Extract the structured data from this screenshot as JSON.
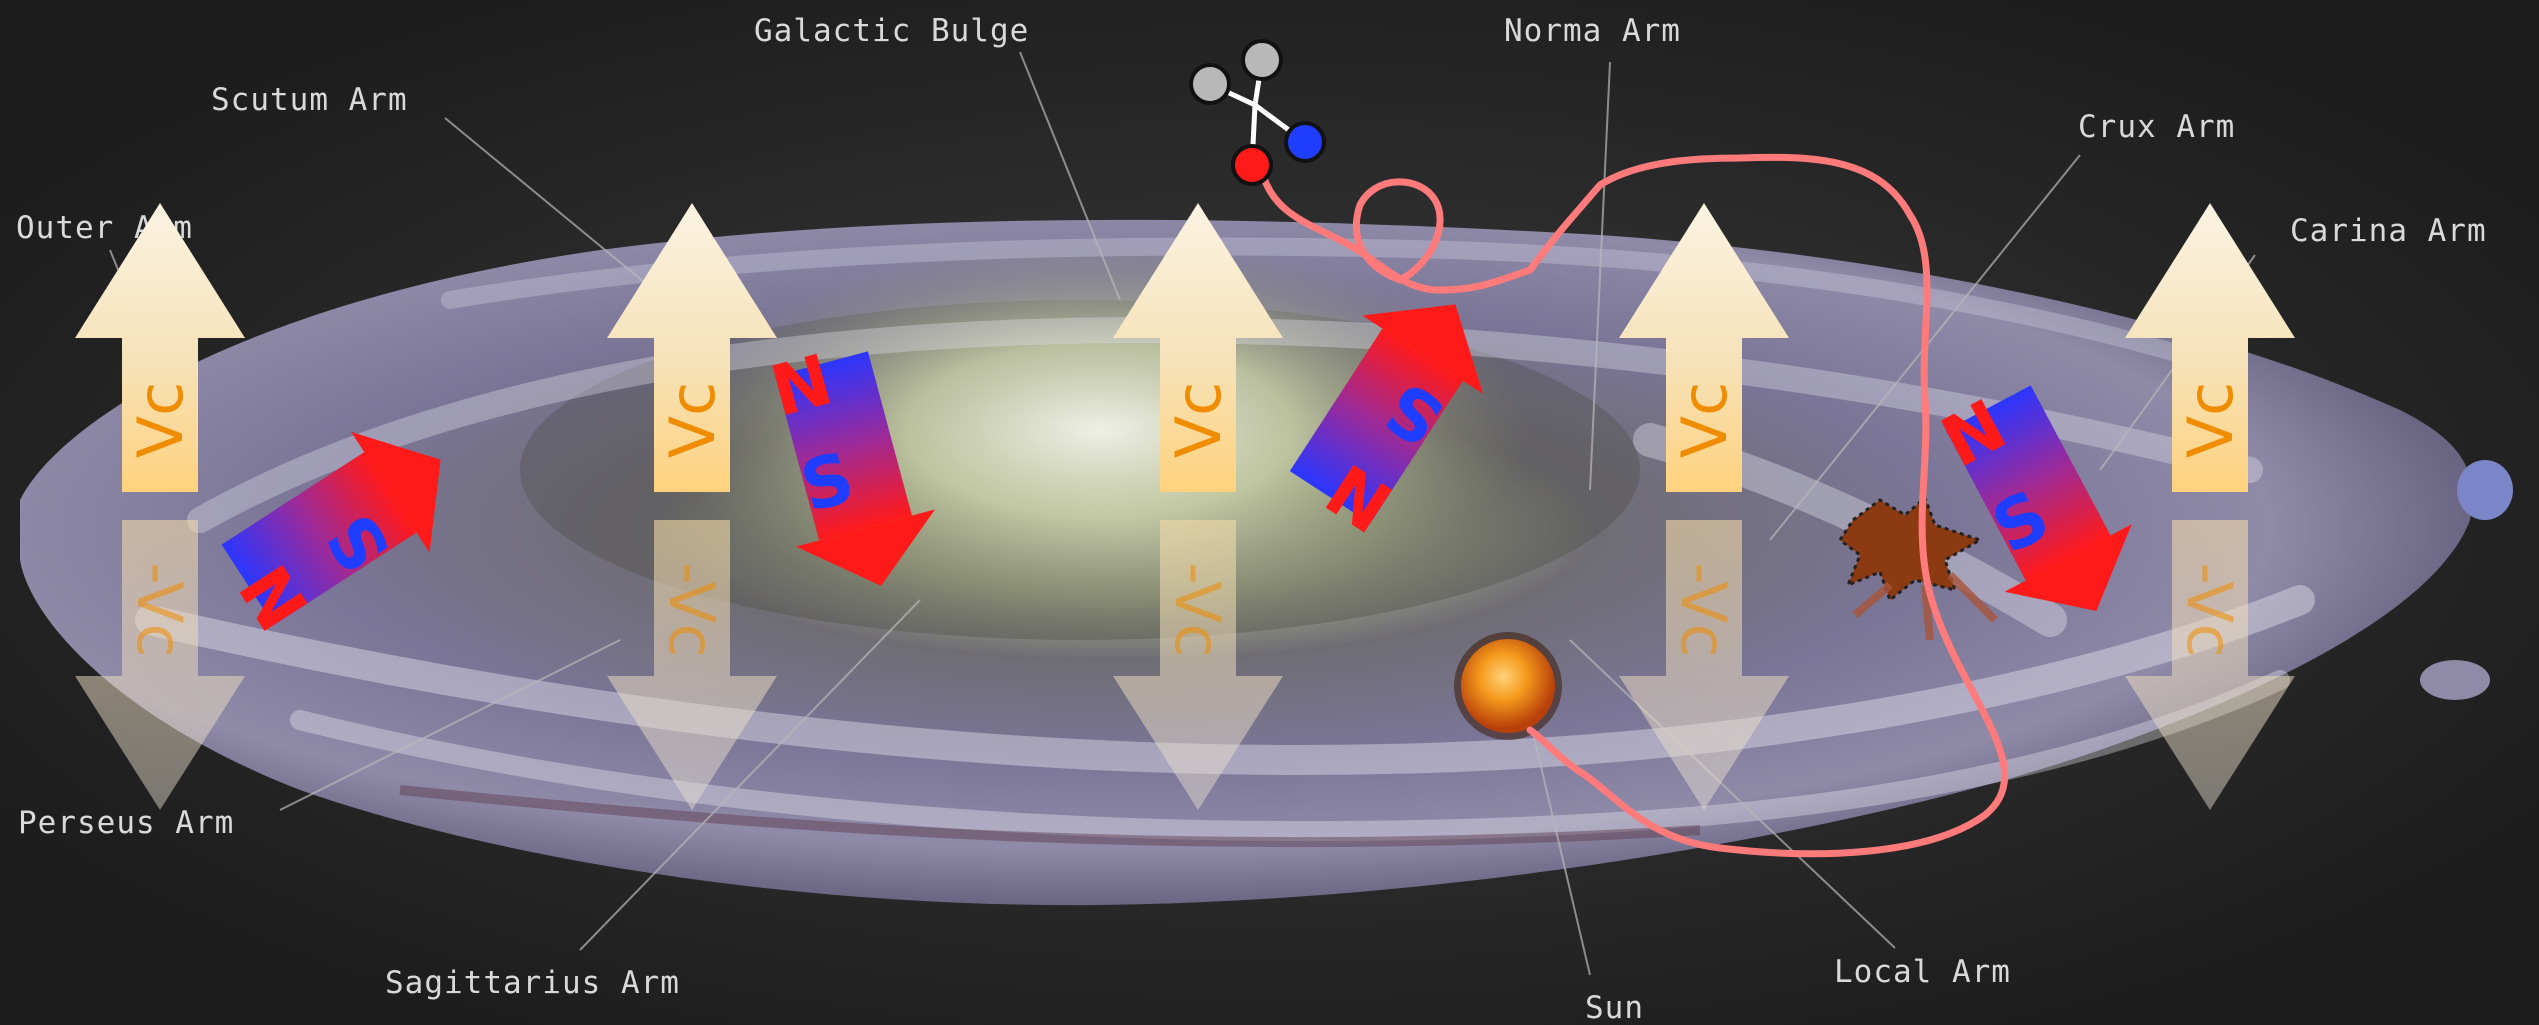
{
  "labels": {
    "outer_arm": "Outer Arm",
    "scutum_arm": "Scutum Arm",
    "galactic_bulge": "Galactic Bulge",
    "norma_arm": "Norma Arm",
    "crux_arm": "Crux Arm",
    "carina_arm": "Carina Arm",
    "perseus_arm": "Perseus Arm",
    "sagittarius_arm": "Sagittarius Arm",
    "sun": "Sun",
    "local_arm": "Local Arm"
  },
  "velocity": {
    "up": "Vc",
    "down": "-Vc"
  },
  "magnet": {
    "north": "N",
    "south": "S"
  },
  "colors": {
    "background": "#1e1e1e",
    "arrow_cream": "#f6e6c4",
    "arrow_band": "#ffcf7a",
    "vc_text": "#f08c00",
    "magnet_north_blue": "#2f3cff",
    "magnet_south_red": "#ff1a1a",
    "trajectory": "#ff7a7a",
    "sun": "#f07a10"
  }
}
